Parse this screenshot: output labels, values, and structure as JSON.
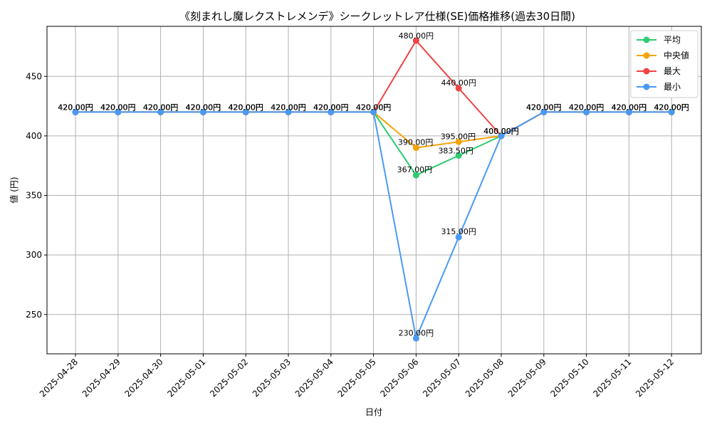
{
  "chart_data": {
    "type": "line",
    "title": "《刻まれし魔レクストレメンデ》シークレットレア仕様(SE)価格推移(過去30日間)",
    "xlabel": "日付",
    "ylabel": "値 (円)",
    "categories": [
      "2025-04-28",
      "2025-04-29",
      "2025-04-30",
      "2025-05-01",
      "2025-05-02",
      "2025-05-03",
      "2025-05-04",
      "2025-05-05",
      "2025-05-06",
      "2025-05-07",
      "2025-05-08",
      "2025-05-09",
      "2025-05-10",
      "2025-05-11",
      "2025-05-12"
    ],
    "ylim": [
      217,
      492
    ],
    "yticks": [
      250,
      300,
      350,
      400,
      450
    ],
    "grid": true,
    "legend_position": "top-right",
    "series": [
      {
        "name": "平均",
        "color": "#2ecc71",
        "values": [
          420,
          420,
          420,
          420,
          420,
          420,
          420,
          420,
          367,
          383.5,
          400,
          420,
          420,
          420,
          420
        ],
        "labels": [
          "420.00円",
          "420.00円",
          "420.00円",
          "420.00円",
          "420.00円",
          "420.00円",
          "420.00円",
          "420.00円",
          "367.00円",
          "383.50円",
          "400.00円",
          "420.00円",
          "420.00円",
          "420.00円",
          "420.00円"
        ]
      },
      {
        "name": "中央値",
        "color": "#f5a30a",
        "values": [
          420,
          420,
          420,
          420,
          420,
          420,
          420,
          420,
          390,
          395,
          400,
          420,
          420,
          420,
          420
        ],
        "labels": [
          "420.00円",
          "420.00円",
          "420.00円",
          "420.00円",
          "420.00円",
          "420.00円",
          "420.00円",
          "420.00円",
          "390.00円",
          "395.00円",
          "400.00円",
          "420.00円",
          "420.00円",
          "420.00円",
          "420.00円"
        ]
      },
      {
        "name": "最大",
        "color": "#ef4444",
        "values": [
          420,
          420,
          420,
          420,
          420,
          420,
          420,
          420,
          480,
          440,
          400,
          420,
          420,
          420,
          420
        ],
        "labels": [
          "420.00円",
          "420.00円",
          "420.00円",
          "420.00円",
          "420.00円",
          "420.00円",
          "420.00円",
          "420.00円",
          "480.00円",
          "440.00円",
          "400.00円",
          "420.00円",
          "420.00円",
          "420.00円",
          "420.00円"
        ]
      },
      {
        "name": "最小",
        "color": "#4a9af5",
        "values": [
          420,
          420,
          420,
          420,
          420,
          420,
          420,
          420,
          230,
          315,
          400,
          420,
          420,
          420,
          420
        ],
        "labels": [
          "420.00円",
          "420.00円",
          "420.00円",
          "420.00円",
          "420.00円",
          "420.00円",
          "420.00円",
          "420.00円",
          "230.00円",
          "315.00円",
          "400.00円",
          "420.00円",
          "420.00円",
          "420.00円",
          "420.00円"
        ]
      }
    ]
  }
}
